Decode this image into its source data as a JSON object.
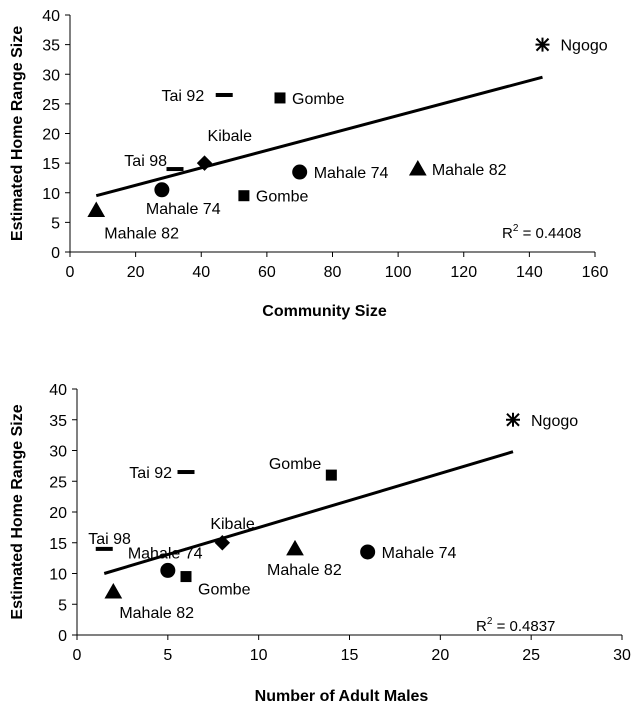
{
  "chart_data": [
    {
      "type": "scatter",
      "xlabel": "Community Size",
      "ylabel": "Estimated Home Range Size",
      "xlim": [
        0,
        160
      ],
      "ylim": [
        0,
        40
      ],
      "xticks": [
        "0",
        "20",
        "40",
        "60",
        "80",
        "100",
        "120",
        "140",
        "160"
      ],
      "yticks": [
        "0",
        "5",
        "10",
        "15",
        "20",
        "25",
        "30",
        "35",
        "40"
      ],
      "points": [
        {
          "label": "Ngogo",
          "x": 144,
          "y": 35,
          "marker": "star"
        },
        {
          "label": "Tai 92",
          "x": 47,
          "y": 26.5,
          "marker": "dash"
        },
        {
          "label": "Gombe",
          "x": 64,
          "y": 26,
          "marker": "square"
        },
        {
          "label": "Kibale",
          "x": 41,
          "y": 15,
          "marker": "diamond"
        },
        {
          "label": "Tai 98",
          "x": 32,
          "y": 14,
          "marker": "dash"
        },
        {
          "label": "Mahale 74",
          "x": 70,
          "y": 13.5,
          "marker": "circle"
        },
        {
          "label": "Mahale 82",
          "x": 106,
          "y": 14,
          "marker": "triangle"
        },
        {
          "label": "Mahale 74",
          "x": 28,
          "y": 10.5,
          "marker": "circle"
        },
        {
          "label": "Gombe",
          "x": 53,
          "y": 9.5,
          "marker": "square"
        },
        {
          "label": "Mahale 82",
          "x": 8,
          "y": 7,
          "marker": "triangle"
        }
      ],
      "trendline": {
        "x": [
          8,
          144
        ],
        "y": [
          9.5,
          29.5
        ]
      },
      "annotation": {
        "prefix": "R",
        "sup": "2",
        "suffix": " = 0.4408"
      }
    },
    {
      "type": "scatter",
      "xlabel": "Number of Adult Males",
      "ylabel": "Estimated Home Range Size",
      "xlim": [
        0,
        30
      ],
      "ylim": [
        0,
        40
      ],
      "xticks": [
        "0",
        "5",
        "10",
        "15",
        "20",
        "25",
        "30"
      ],
      "yticks": [
        "0",
        "5",
        "10",
        "15",
        "20",
        "25",
        "30",
        "35",
        "40"
      ],
      "points": [
        {
          "label": "Ngogo",
          "x": 24,
          "y": 35,
          "marker": "star"
        },
        {
          "label": "Tai 92",
          "x": 6,
          "y": 26.5,
          "marker": "dash"
        },
        {
          "label": "Gombe",
          "x": 14,
          "y": 26,
          "marker": "square"
        },
        {
          "label": "Kibale",
          "x": 8,
          "y": 15,
          "marker": "diamond"
        },
        {
          "label": "Tai 98",
          "x": 1.5,
          "y": 14,
          "marker": "dash"
        },
        {
          "label": "Mahale 74",
          "x": 16,
          "y": 13.5,
          "marker": "circle"
        },
        {
          "label": "Mahale 82",
          "x": 12,
          "y": 14,
          "marker": "triangle"
        },
        {
          "label": "Mahale 74",
          "x": 5,
          "y": 10.5,
          "marker": "circle"
        },
        {
          "label": "Gombe",
          "x": 6,
          "y": 9.5,
          "marker": "square"
        },
        {
          "label": "Mahale 82",
          "x": 2,
          "y": 7,
          "marker": "triangle"
        }
      ],
      "trendline": {
        "x": [
          1.5,
          24
        ],
        "y": [
          10,
          29.8
        ]
      },
      "annotation": {
        "prefix": "R",
        "sup": "2",
        "suffix": " = 0.4837"
      }
    }
  ]
}
